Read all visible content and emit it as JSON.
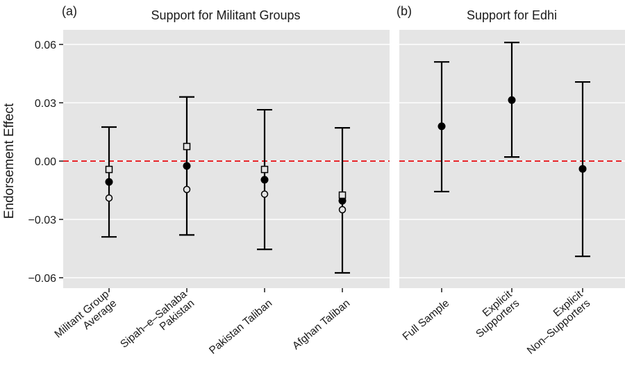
{
  "chart_data": [
    {
      "type": "scatter",
      "panel_label": "(a)",
      "title": "Support for Militant Groups",
      "xlabel": "",
      "ylabel": "Endorsement Effect",
      "ylim": [
        -0.07,
        0.07
      ],
      "yticks": [
        0.06,
        0.03,
        0.0,
        -0.03,
        -0.06
      ],
      "ytick_labels": [
        "0.06",
        "0.03",
        "0.00",
        "−0.03",
        "−0.06"
      ],
      "reference_line": {
        "y": 0.0,
        "color": "#e8252a",
        "style": "dashed"
      },
      "categories": [
        "Militant Group\nAverage",
        "Sipah–e–Sahaba\nPakistan",
        "Pakistan Taliban",
        "Afghan Taliban"
      ],
      "series": [
        {
          "name": "estimate",
          "marker": "filled-circle",
          "values": [
            -0.0107,
            -0.0025,
            -0.0096,
            -0.0204
          ]
        },
        {
          "name": "alt-estimate-square",
          "marker": "open-square",
          "values": [
            -0.0043,
            0.0075,
            -0.0043,
            -0.0175
          ]
        },
        {
          "name": "alt-estimate-circle",
          "marker": "open-circle",
          "values": [
            -0.019,
            -0.0146,
            -0.017,
            -0.025
          ]
        }
      ],
      "ci_upper": [
        0.0175,
        0.033,
        0.0264,
        0.0171
      ],
      "ci_lower": [
        -0.039,
        -0.038,
        -0.0454,
        -0.0575
      ],
      "grid": true
    },
    {
      "type": "scatter",
      "panel_label": "(b)",
      "title": "Support for Edhi",
      "xlabel": "",
      "ylabel": "",
      "ylim": [
        -0.07,
        0.07
      ],
      "yticks": [
        0.06,
        0.03,
        0.0,
        -0.03,
        -0.06
      ],
      "reference_line": {
        "y": 0.0,
        "color": "#e8252a",
        "style": "dashed"
      },
      "categories": [
        "Full Sample",
        "Explicit\nSupporters",
        "Explicit\nNon–Supporters"
      ],
      "series": [
        {
          "name": "estimate",
          "marker": "filled-circle",
          "values": [
            0.0179,
            0.0314,
            -0.004
          ]
        }
      ],
      "ci_upper": [
        0.051,
        0.061,
        0.0407
      ],
      "ci_lower": [
        -0.0157,
        0.0021,
        -0.049
      ],
      "grid": true
    }
  ]
}
